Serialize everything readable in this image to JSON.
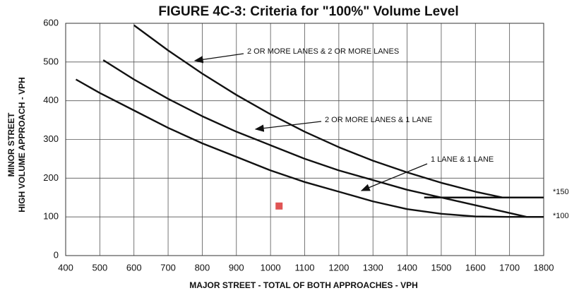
{
  "chart_data": {
    "type": "line",
    "title": "FIGURE 4C-3:  Criteria for \"100%\" Volume Level",
    "x_label": "MAJOR STREET - TOTAL OF BOTH APPROACHES - VPH",
    "y_label": [
      "MINOR STREET",
      "HIGH VOLUME APPROACH - VPH"
    ],
    "xlim": [
      400,
      1800
    ],
    "ylim": [
      0,
      600
    ],
    "xticks": [
      400,
      500,
      600,
      700,
      800,
      900,
      1000,
      1100,
      1200,
      1300,
      1400,
      1500,
      1600,
      1700,
      1800
    ],
    "yticks": [
      0,
      100,
      200,
      300,
      400,
      500,
      600
    ],
    "grid": true,
    "series": [
      {
        "color": "#111111",
        "x": [
          600,
          700,
          800,
          900,
          1000,
          1100,
          1200,
          1300,
          1400,
          1500,
          1600,
          1680,
          1800
        ],
        "values": [
          595,
          530,
          470,
          415,
          365,
          320,
          280,
          245,
          215,
          188,
          165,
          150,
          150
        ]
      },
      {
        "color": "#111111",
        "x": [
          510,
          600,
          700,
          800,
          900,
          1000,
          1100,
          1200,
          1300,
          1400,
          1500,
          1600,
          1700,
          1750,
          1800
        ],
        "values": [
          505,
          455,
          405,
          360,
          320,
          285,
          250,
          220,
          195,
          170,
          150,
          130,
          110,
          100,
          100
        ]
      },
      {
        "color": "#111111",
        "x": [
          430,
          500,
          600,
          700,
          800,
          900,
          1000,
          1100,
          1200,
          1300,
          1400,
          1500,
          1600,
          1700,
          1800
        ],
        "values": [
          455,
          420,
          375,
          330,
          290,
          255,
          220,
          190,
          165,
          140,
          120,
          108,
          101,
          100,
          100
        ]
      },
      {
        "color": "#111111",
        "x": [
          1450,
          1800
        ],
        "values": [
          150,
          150
        ]
      }
    ],
    "points": [
      {
        "x": 1025,
        "y": 128,
        "color": "#e05555"
      }
    ],
    "annotations": [
      "2 OR MORE LANES & 2 OR MORE LANES",
      "2 OR MORE LANES & 1 LANE",
      "1 LANE & 1 LANE"
    ],
    "right_labels": [
      "*150",
      "*100"
    ]
  }
}
